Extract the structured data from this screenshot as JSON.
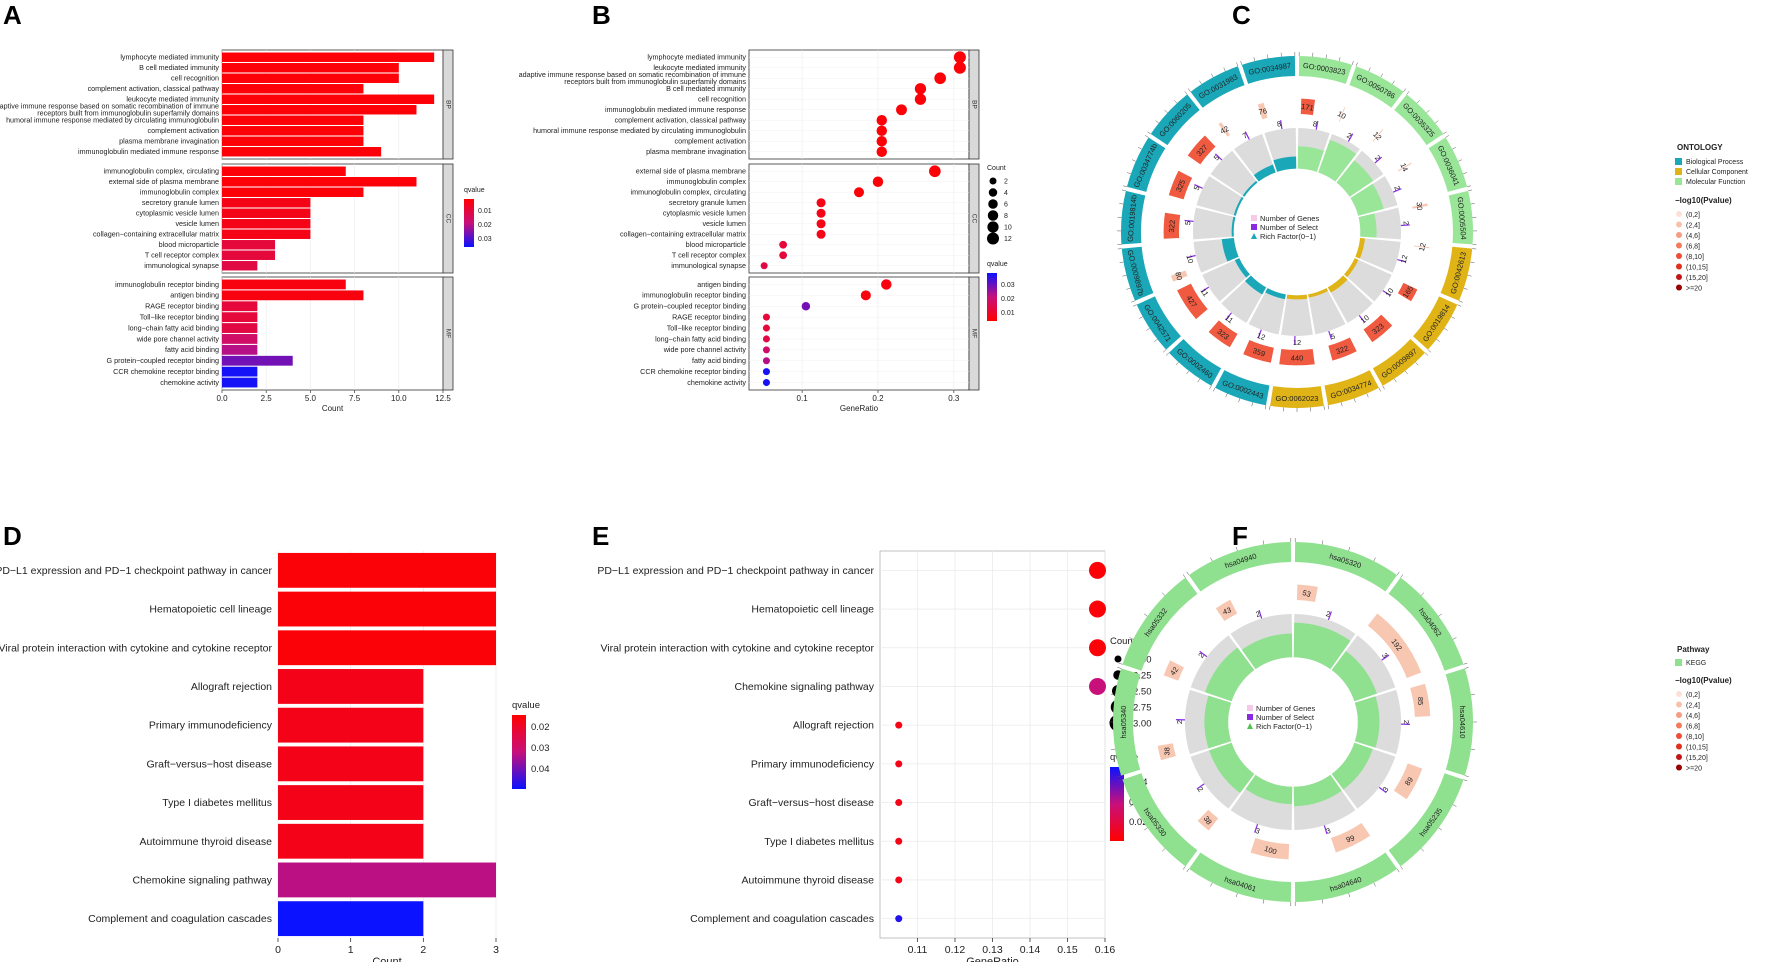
{
  "panels": {
    "A": "A",
    "B": "B",
    "C": "C",
    "D": "D",
    "E": "E",
    "F": "F"
  },
  "palette": {
    "low": "#ff0000",
    "mid": "#c8107a",
    "high": "#0a12ff",
    "bp": "#1aa7b8",
    "cc": "#e0b416",
    "mf": "#99e699",
    "ring": "#8fe08f",
    "track": "#e0e0e0",
    "inner": "#dcdcdc"
  },
  "chart_data": [
    {
      "id": "A",
      "type": "bar",
      "orientation": "horizontal",
      "xlabel": "Count",
      "xlim": [
        0,
        12.5
      ],
      "xticks": [
        0.0,
        2.5,
        5.0,
        7.5,
        10.0,
        12.5
      ],
      "xtick_labels": [
        "0.0",
        "2.5",
        "5.0",
        "7.5",
        "10.0",
        "12.5"
      ],
      "legend": {
        "title": "qvalue",
        "ticks": [
          "0.01",
          "0.02",
          "0.03"
        ],
        "range": [
          0.003,
          0.036
        ]
      },
      "facets": [
        {
          "name": "BP",
          "categories": [
            "lymphocyte mediated immunity",
            "B cell mediated immunity",
            "cell recognition",
            "complement activation, classical pathway",
            "leukocyte mediated immunity",
            "adaptive immune response based on somatic recombination of immune\nreceptors built from immunoglobulin superfamily domains",
            "humoral immune response mediated by circulating immunoglobulin",
            "complement activation",
            "plasma membrane invagination",
            "immunoglobulin mediated immune response"
          ],
          "values": [
            12,
            10,
            10,
            8,
            12,
            11,
            8,
            8,
            8,
            9
          ],
          "qvalues": [
            0.004,
            0.004,
            0.004,
            0.004,
            0.004,
            0.004,
            0.004,
            0.004,
            0.004,
            0.004
          ]
        },
        {
          "name": "CC",
          "categories": [
            "immunoglobulin complex, circulating",
            "external side of plasma membrane",
            "immunoglobulin complex",
            "secretory granule lumen",
            "cytoplasmic vesicle lumen",
            "vesicle lumen",
            "collagen−containing extracellular matrix",
            "blood microparticle",
            "T cell receptor complex",
            "immunological synapse"
          ],
          "values": [
            7,
            11,
            8,
            5,
            5,
            5,
            5,
            3,
            3,
            2
          ],
          "qvalues": [
            0.004,
            0.004,
            0.004,
            0.006,
            0.006,
            0.006,
            0.006,
            0.011,
            0.011,
            0.012
          ]
        },
        {
          "name": "MF",
          "categories": [
            "immunoglobulin receptor binding",
            "antigen binding",
            "RAGE receptor binding",
            "Toll−like receptor binding",
            "long−chain fatty acid binding",
            "wide pore channel activity",
            "fatty acid binding",
            "G protein−coupled receptor binding",
            "CCR chemokine receptor binding",
            "chemokine activity"
          ],
          "values": [
            7,
            8,
            2,
            2,
            2,
            2,
            2,
            4,
            2,
            2
          ],
          "qvalues": [
            0.005,
            0.005,
            0.011,
            0.011,
            0.012,
            0.017,
            0.021,
            0.027,
            0.035,
            0.035
          ]
        }
      ]
    },
    {
      "id": "B",
      "type": "scatter",
      "xlabel": "GeneRatio",
      "xlim": [
        0.03,
        0.32
      ],
      "xticks": [
        0.1,
        0.2,
        0.3
      ],
      "xtick_labels": [
        "0.1",
        "0.2",
        "0.3"
      ],
      "size_legend": {
        "title": "Count",
        "values": [
          2,
          4,
          6,
          8,
          10,
          12
        ]
      },
      "color_legend": {
        "title": "qvalue",
        "ticks": [
          "0.03",
          "0.02",
          "0.01"
        ],
        "range": [
          0.003,
          0.036
        ]
      },
      "facets": [
        {
          "name": "BP",
          "categories": [
            "lymphocyte mediated immunity",
            "leukocyte mediated immunity",
            "adaptive immune response based on somatic recombination of immune\nreceptors built from immunoglobulin superfamily domains",
            "B cell mediated immunity",
            "cell recognition",
            "immunoglobulin mediated immune response",
            "complement activation, classical pathway",
            "humoral immune response mediated by circulating immunoglobulin",
            "complement activation",
            "plasma membrane invagination"
          ],
          "x": [
            0.308,
            0.308,
            0.282,
            0.256,
            0.256,
            0.231,
            0.205,
            0.205,
            0.205,
            0.205
          ],
          "counts": [
            12,
            12,
            11,
            10,
            10,
            9,
            8,
            8,
            8,
            8
          ],
          "qvalues": [
            0.004,
            0.004,
            0.004,
            0.004,
            0.004,
            0.004,
            0.004,
            0.004,
            0.004,
            0.004
          ]
        },
        {
          "name": "CC",
          "categories": [
            "external side of plasma membrane",
            "immunoglobulin complex",
            "immunoglobulin complex, circulating",
            "secretory granule lumen",
            "cytoplasmic vesicle lumen",
            "vesicle lumen",
            "collagen−containing extracellular matrix",
            "blood microparticle",
            "T cell receptor complex",
            "immunological synapse"
          ],
          "x": [
            0.275,
            0.2,
            0.175,
            0.125,
            0.125,
            0.125,
            0.125,
            0.075,
            0.075,
            0.05
          ],
          "counts": [
            11,
            8,
            7,
            5,
            5,
            5,
            5,
            3,
            3,
            2
          ],
          "qvalues": [
            0.004,
            0.004,
            0.004,
            0.006,
            0.006,
            0.006,
            0.006,
            0.011,
            0.011,
            0.012
          ]
        },
        {
          "name": "MF",
          "categories": [
            "antigen binding",
            "immunoglobulin receptor binding",
            "G protein−coupled receptor binding",
            "RAGE receptor binding",
            "Toll−like receptor binding",
            "long−chain fatty acid binding",
            "wide pore channel activity",
            "fatty acid binding",
            "CCR chemokine receptor binding",
            "chemokine activity"
          ],
          "x": [
            0.211,
            0.184,
            0.105,
            0.053,
            0.053,
            0.053,
            0.053,
            0.053,
            0.053,
            0.053
          ],
          "counts": [
            8,
            7,
            4,
            2,
            2,
            2,
            2,
            2,
            2,
            2
          ],
          "qvalues": [
            0.005,
            0.005,
            0.027,
            0.011,
            0.011,
            0.012,
            0.017,
            0.021,
            0.035,
            0.035
          ]
        }
      ]
    },
    {
      "id": "C",
      "type": "circos",
      "legend": {
        "title": "ONTOLOGY",
        "entries": [
          "Biological Process",
          "Cellular Component",
          "Molecular Function"
        ],
        "ptitle": "−log10(Pvalue)",
        "pbins": [
          "(0,2]",
          "(2,4]",
          "(4,6]",
          "(6,8]",
          "(8,10]",
          "(10,15]",
          "(15,20]",
          ">=20"
        ]
      },
      "center_legend": [
        "Number of Genes",
        "Number of Select",
        "Rich Factor(0−1)"
      ],
      "sectors": [
        {
          "id": "GO:0003823",
          "ont": "MF",
          "genes": 171,
          "select": 8,
          "rich": 0.55
        },
        {
          "id": "GO:0050786",
          "ont": "MF",
          "genes": 10,
          "select": 2,
          "rich": 0.85
        },
        {
          "id": "GO:0035325",
          "ont": "MF",
          "genes": 12,
          "select": 2,
          "rich": 0.7
        },
        {
          "id": "GO:0036041",
          "ont": "MF",
          "genes": 14,
          "select": 2,
          "rich": 0.65
        },
        {
          "id": "GO:0005504",
          "ont": "MF",
          "genes": 30,
          "select": 2,
          "rich": 0.4
        },
        {
          "id": "GO:0042613",
          "ont": "CC",
          "genes": 12,
          "select": 12,
          "rich": 0.12
        },
        {
          "id": "GO:0019814",
          "ont": "CC",
          "genes": 165,
          "select": 10,
          "rich": 0.1
        },
        {
          "id": "GO:0009897",
          "ont": "CC",
          "genes": 323,
          "select": 10,
          "rich": 0.15
        },
        {
          "id": "GO:0034774",
          "ont": "CC",
          "genes": 322,
          "select": 5,
          "rich": 0.08
        },
        {
          "id": "GO:0062023",
          "ont": "CC",
          "genes": 440,
          "select": 12,
          "rich": 0.1
        },
        {
          "id": "GO:0002443",
          "ont": "BP",
          "genes": 359,
          "select": 12,
          "rich": 0.12
        },
        {
          "id": "GO:0002460",
          "ont": "BP",
          "genes": 323,
          "select": 11,
          "rich": 0.2
        },
        {
          "id": "GO:0042571",
          "ont": "BP",
          "genes": 427,
          "select": 11,
          "rich": 0.12
        },
        {
          "id": "GO:0009897b",
          "ont": "BP",
          "genes": 80,
          "select": 10,
          "rich": 0.3
        },
        {
          "id": "GO:0019814b",
          "ont": "BP",
          "genes": 322,
          "select": 5,
          "rich": 0.05
        },
        {
          "id": "GO:0034774b",
          "ont": "BP",
          "genes": 325,
          "select": 5,
          "rich": 0.05
        },
        {
          "id": "GO:0060205",
          "ont": "BP",
          "genes": 327,
          "select": 5,
          "rich": 0.05
        },
        {
          "id": "GO:0031983",
          "ont": "BP",
          "genes": 42,
          "select": 7,
          "rich": 0.2
        },
        {
          "id": "GO:0034987",
          "ont": "BP",
          "genes": 76,
          "select": 8,
          "rich": 0.3
        }
      ]
    },
    {
      "id": "D",
      "type": "bar",
      "orientation": "horizontal",
      "xlabel": "Count",
      "xlim": [
        0,
        3
      ],
      "xticks": [
        0,
        1,
        2,
        3
      ],
      "xtick_labels": [
        "0",
        "1",
        "2",
        "3"
      ],
      "legend": {
        "title": "qvalue",
        "ticks": [
          "0.02",
          "0.03",
          "0.04"
        ],
        "range": [
          0.015,
          0.045
        ]
      },
      "categories": [
        "PD−L1 expression and PD−1 checkpoint pathway in cancer",
        "Hematopoietic cell lineage",
        "Viral protein interaction with cytokine and cytokine receptor",
        "Allograft rejection",
        "Primary immunodeficiency",
        "Graft−versus−host disease",
        "Type I diabetes mellitus",
        "Autoimmune thyroid disease",
        "Chemokine signaling pathway",
        "Complement and coagulation cascades"
      ],
      "values": [
        3,
        3,
        3,
        2,
        2,
        2,
        2,
        2,
        3,
        2
      ],
      "qvalues": [
        0.016,
        0.016,
        0.016,
        0.018,
        0.018,
        0.018,
        0.018,
        0.018,
        0.031,
        0.045
      ]
    },
    {
      "id": "E",
      "type": "scatter",
      "xlabel": "GeneRatio",
      "xlim": [
        0.1,
        0.16
      ],
      "xticks": [
        0.11,
        0.12,
        0.13,
        0.14,
        0.15,
        0.16
      ],
      "xtick_labels": [
        "0.11",
        "0.12",
        "0.13",
        "0.14",
        "0.15",
        "0.16"
      ],
      "size_legend": {
        "title": "Count",
        "values": [
          2.0,
          2.25,
          2.5,
          2.75,
          3.0
        ],
        "labels": [
          "2.00",
          "2.25",
          "2.50",
          "2.75",
          "3.00"
        ]
      },
      "color_legend": {
        "title": "qvalue",
        "ticks": [
          "0.04",
          "0.03",
          "0.02"
        ],
        "range": [
          0.015,
          0.047
        ]
      },
      "categories": [
        "PD−L1 expression and PD−1 checkpoint pathway in cancer",
        "Hematopoietic cell lineage",
        "Viral protein interaction with cytokine and cytokine receptor",
        "Chemokine signaling pathway",
        "Allograft rejection",
        "Primary immunodeficiency",
        "Graft−versus−host disease",
        "Type I diabetes mellitus",
        "Autoimmune thyroid disease",
        "Complement and coagulation cascades"
      ],
      "x": [
        0.158,
        0.158,
        0.158,
        0.158,
        0.105,
        0.105,
        0.105,
        0.105,
        0.105,
        0.105
      ],
      "counts": [
        3,
        3,
        3,
        3,
        2,
        2,
        2,
        2,
        2,
        2
      ],
      "qvalues": [
        0.016,
        0.016,
        0.016,
        0.031,
        0.018,
        0.018,
        0.018,
        0.018,
        0.018,
        0.045
      ]
    },
    {
      "id": "F",
      "type": "circos",
      "legend": {
        "title": "Pathway",
        "entries": [
          "KEGG"
        ],
        "ptitle": "−log10(Pvalue)",
        "pbins": [
          "(0,2]",
          "(2,4]",
          "(4,6]",
          "(6,8]",
          "(8,10]",
          "(10,15]",
          "(15,20]",
          ">=20"
        ]
      },
      "center_legend": [
        "Number of Genes",
        "Number of Select",
        "Rich Factor(0−1)"
      ],
      "sectors": [
        {
          "id": "hsa05320",
          "genes": 53,
          "select": 2,
          "rich": 0.8
        },
        {
          "id": "hsa04062",
          "genes": 192,
          "select": 3,
          "rich": 0.55
        },
        {
          "id": "hsa04610",
          "genes": 85,
          "select": 2,
          "rich": 0.5
        },
        {
          "id": "hsa05235",
          "genes": 89,
          "select": 3,
          "rich": 0.45
        },
        {
          "id": "hsa04640",
          "genes": 99,
          "select": 3,
          "rich": 0.45
        },
        {
          "id": "hsa04061",
          "genes": 100,
          "select": 3,
          "rich": 0.4
        },
        {
          "id": "hsa05330",
          "genes": 38,
          "select": 2,
          "rich": 0.55
        },
        {
          "id": "hsa05340",
          "genes": 38,
          "select": 2,
          "rich": 0.55
        },
        {
          "id": "hsa05332",
          "genes": 42,
          "select": 2,
          "rich": 0.65
        },
        {
          "id": "hsa04940",
          "genes": 43,
          "select": 2,
          "rich": 0.55
        }
      ]
    }
  ]
}
